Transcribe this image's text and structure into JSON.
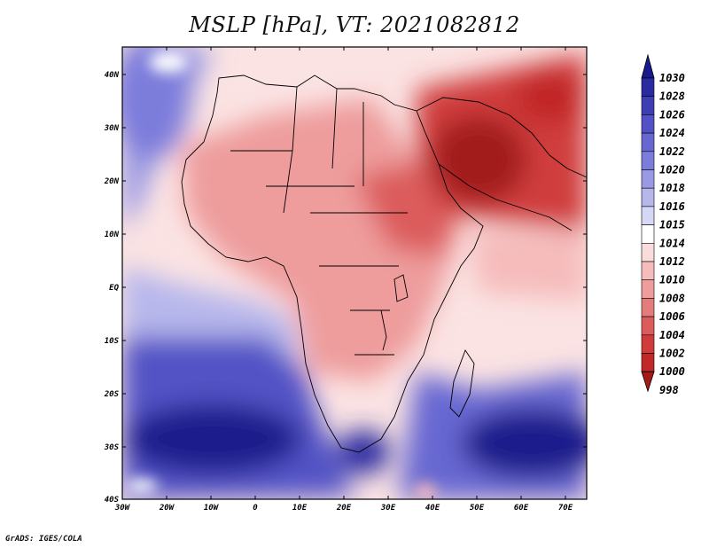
{
  "title": "MSLP [hPa], VT: 2021082812",
  "credit": "GrADS: IGES/COLA",
  "x_ticks": [
    "30W",
    "20W",
    "10W",
    "0",
    "10E",
    "20E",
    "30E",
    "40E",
    "50E",
    "60E",
    "70E"
  ],
  "y_ticks": [
    "40N",
    "30N",
    "20N",
    "10N",
    "EQ",
    "10S",
    "20S",
    "30S",
    "40S"
  ],
  "colorbar": {
    "labels": [
      "1030",
      "1028",
      "1026",
      "1024",
      "1022",
      "1020",
      "1018",
      "1016",
      "1015",
      "1014",
      "1012",
      "1010",
      "1008",
      "1006",
      "1004",
      "1002",
      "1000",
      "998"
    ],
    "colors": [
      "#1a1a8c",
      "#2b2ba0",
      "#3d3db4",
      "#5252c6",
      "#6767d2",
      "#7c7cdb",
      "#9a9ae4",
      "#b7b7ec",
      "#d6d6f5",
      "#ffffff",
      "#fbdcdc",
      "#f6bcbc",
      "#ee9c9c",
      "#e57c7c",
      "#dc5c5c",
      "#d03c3c",
      "#c12828",
      "#a31a1a"
    ]
  }
}
